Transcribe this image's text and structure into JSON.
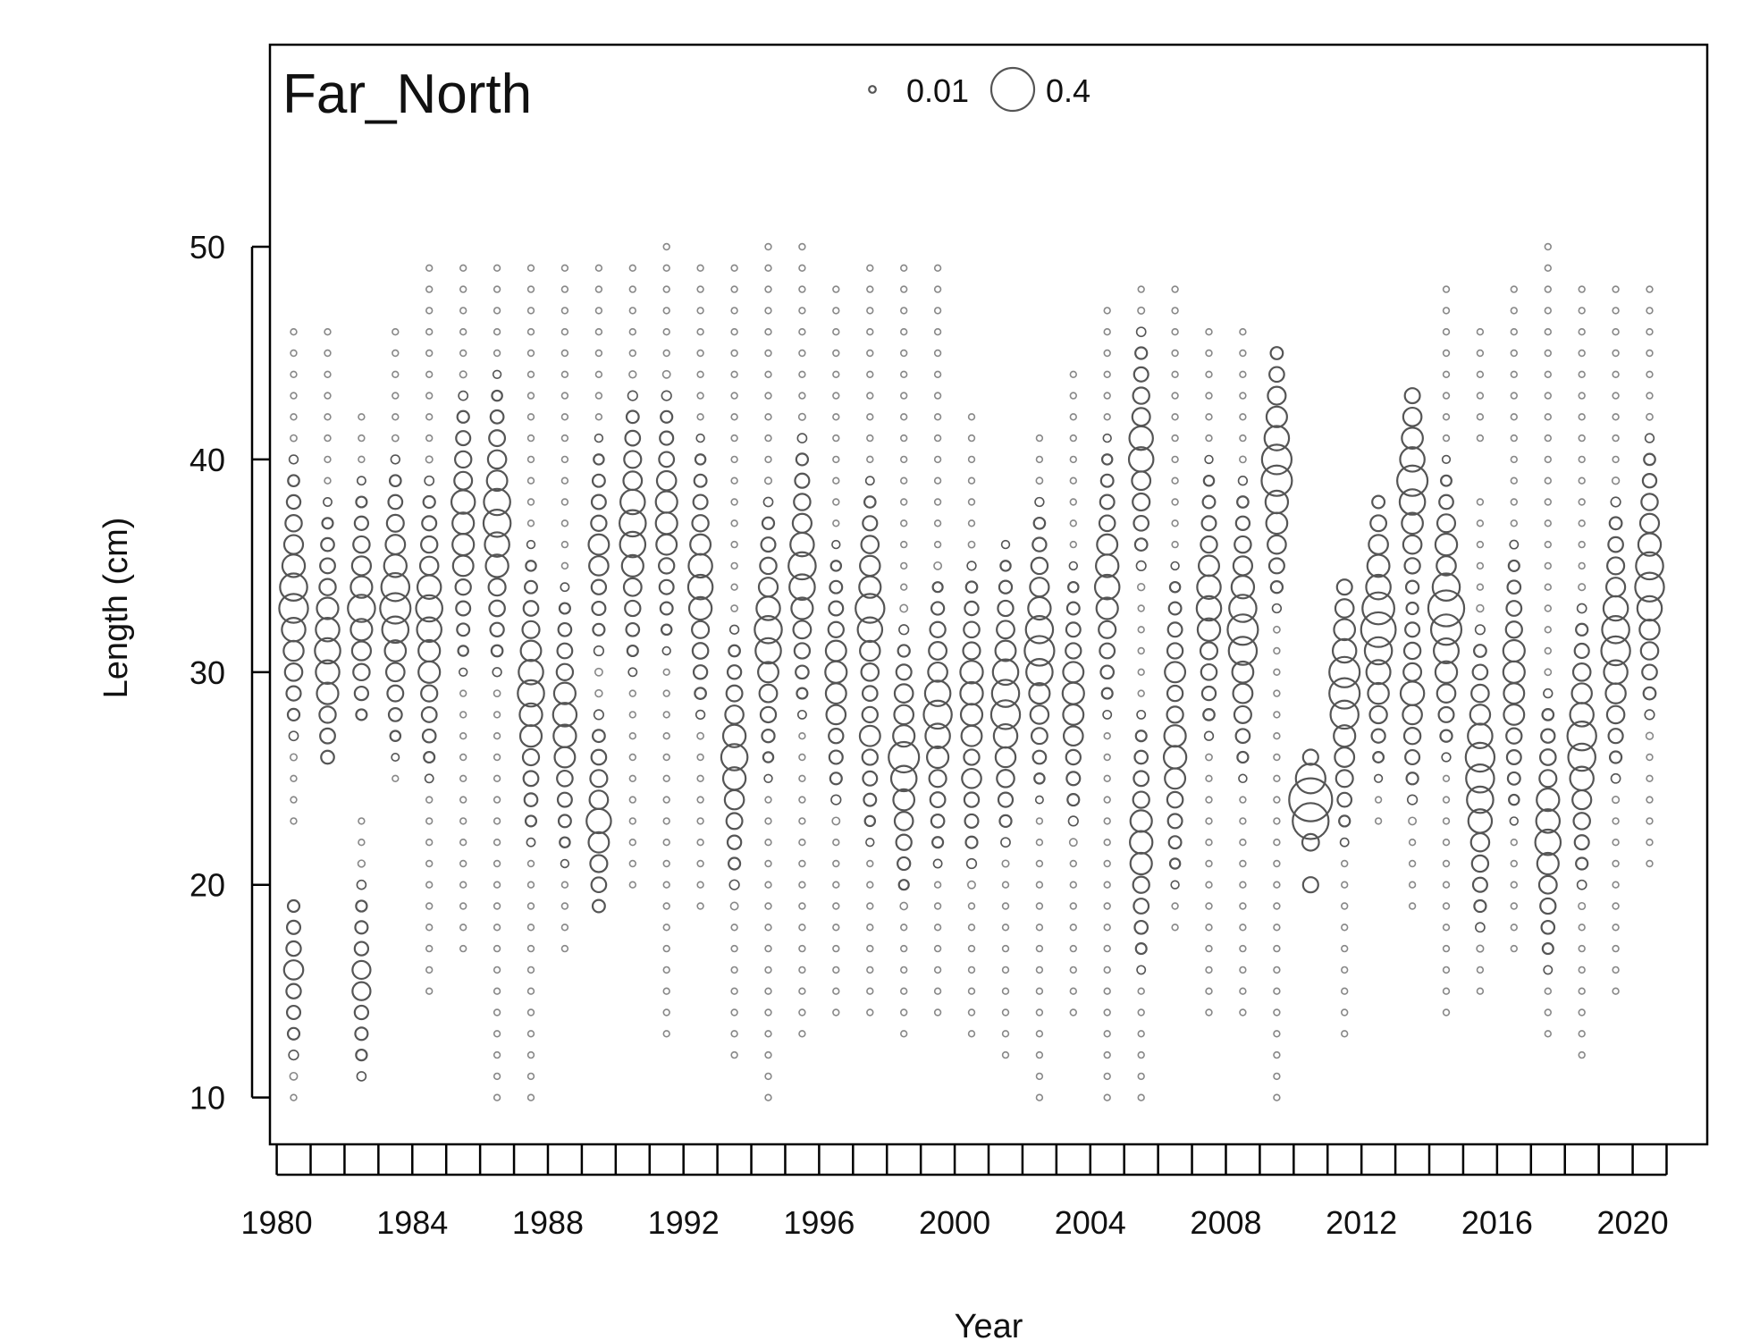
{
  "chart_data": {
    "type": "scatter",
    "subtype": "bubble",
    "title": "Far_North",
    "xlabel": "Year",
    "ylabel": "Length (cm)",
    "xlim": [
      1979.8,
      2022.2
    ],
    "ylim": [
      7.8,
      59.5
    ],
    "x_ticks": [
      1980,
      1981,
      1982,
      1983,
      1984,
      1985,
      1986,
      1987,
      1988,
      1989,
      1990,
      1991,
      1992,
      1993,
      1994,
      1995,
      1996,
      1997,
      1998,
      1999,
      2000,
      2001,
      2002,
      2003,
      2004,
      2005,
      2006,
      2007,
      2008,
      2009,
      2010,
      2011,
      2012,
      2013,
      2014,
      2015,
      2016,
      2017,
      2018,
      2019,
      2020,
      2021
    ],
    "x_tick_labels": [
      "1980",
      "1984",
      "1988",
      "1992",
      "1996",
      "2000",
      "2004",
      "2008",
      "2012",
      "2016",
      "2020"
    ],
    "x_tick_label_years": [
      1980,
      1984,
      1988,
      1992,
      1996,
      2000,
      2004,
      2008,
      2012,
      2016,
      2020
    ],
    "y_ticks": [
      10,
      20,
      30,
      40,
      50
    ],
    "y_tick_labels": [
      "10",
      "20",
      "30",
      "40",
      "50"
    ],
    "legend": {
      "position": "top-center",
      "entries": [
        {
          "label": "0.01",
          "value": 0.01
        },
        {
          "label": "0.4",
          "value": 0.4
        }
      ]
    },
    "grid": false,
    "point_color": "#555555",
    "series": [
      {
        "year": 1980.5,
        "min": 10,
        "max": 46,
        "gaps": [
          [
            20,
            22
          ]
        ],
        "peaks": [
          [
            33,
            0.18
          ],
          [
            34,
            0.16
          ],
          [
            32,
            0.12
          ],
          [
            35,
            0.11
          ],
          [
            16,
            0.08
          ]
        ]
      },
      {
        "year": 1981.5,
        "min": 26,
        "max": 46,
        "peaks": [
          [
            31,
            0.14
          ],
          [
            30,
            0.12
          ],
          [
            32,
            0.12
          ],
          [
            29,
            0.1
          ],
          [
            33,
            0.1
          ]
        ]
      },
      {
        "year": 1982.5,
        "min": 11,
        "max": 42,
        "gaps": [
          [
            24,
            27
          ]
        ],
        "peaks": [
          [
            33,
            0.16
          ],
          [
            34,
            0.1
          ],
          [
            32,
            0.1
          ],
          [
            16,
            0.07
          ],
          [
            15,
            0.07
          ]
        ]
      },
      {
        "year": 1983.5,
        "min": 25,
        "max": 46,
        "peaks": [
          [
            33,
            0.2
          ],
          [
            34,
            0.17
          ],
          [
            32,
            0.15
          ],
          [
            35,
            0.11
          ]
        ]
      },
      {
        "year": 1984.5,
        "min": 15,
        "max": 49,
        "peaks": [
          [
            33,
            0.15
          ],
          [
            32,
            0.13
          ],
          [
            34,
            0.12
          ],
          [
            30,
            0.1
          ],
          [
            31,
            0.1
          ]
        ]
      },
      {
        "year": 1985.5,
        "min": 17,
        "max": 49,
        "peaks": [
          [
            38,
            0.12
          ],
          [
            36,
            0.1
          ],
          [
            37,
            0.1
          ],
          [
            35,
            0.09
          ]
        ]
      },
      {
        "year": 1986.5,
        "min": 10,
        "max": 49,
        "peaks": [
          [
            37,
            0.16
          ],
          [
            38,
            0.15
          ],
          [
            36,
            0.13
          ],
          [
            35,
            0.11
          ],
          [
            39,
            0.09
          ]
        ]
      },
      {
        "year": 1987.5,
        "min": 10,
        "max": 49,
        "peaks": [
          [
            29,
            0.15
          ],
          [
            30,
            0.13
          ],
          [
            28,
            0.11
          ],
          [
            27,
            0.1
          ],
          [
            31,
            0.09
          ]
        ]
      },
      {
        "year": 1988.5,
        "min": 17,
        "max": 49,
        "peaks": [
          [
            28,
            0.12
          ],
          [
            27,
            0.11
          ],
          [
            29,
            0.1
          ],
          [
            26,
            0.09
          ]
        ]
      },
      {
        "year": 1989.5,
        "min": 19,
        "max": 49,
        "peaks": [
          [
            23,
            0.13
          ],
          [
            22,
            0.09
          ],
          [
            36,
            0.09
          ],
          [
            35,
            0.08
          ]
        ]
      },
      {
        "year": 1990.5,
        "min": 20,
        "max": 49,
        "peaks": [
          [
            37,
            0.15
          ],
          [
            36,
            0.14
          ],
          [
            38,
            0.13
          ],
          [
            35,
            0.1
          ]
        ]
      },
      {
        "year": 1991.5,
        "min": 13,
        "max": 50,
        "peaks": [
          [
            37,
            0.1
          ],
          [
            38,
            0.1
          ],
          [
            36,
            0.09
          ],
          [
            39,
            0.08
          ]
        ]
      },
      {
        "year": 1992.5,
        "min": 19,
        "max": 49,
        "peaks": [
          [
            34,
            0.13
          ],
          [
            35,
            0.12
          ],
          [
            33,
            0.11
          ],
          [
            36,
            0.09
          ]
        ]
      },
      {
        "year": 1993.5,
        "min": 12,
        "max": 49,
        "peaks": [
          [
            26,
            0.15
          ],
          [
            25,
            0.11
          ],
          [
            27,
            0.11
          ],
          [
            24,
            0.08
          ]
        ]
      },
      {
        "year": 1994.5,
        "min": 10,
        "max": 50,
        "peaks": [
          [
            32,
            0.16
          ],
          [
            31,
            0.14
          ],
          [
            33,
            0.12
          ],
          [
            30,
            0.09
          ]
        ]
      },
      {
        "year": 1995.5,
        "min": 13,
        "max": 50,
        "peaks": [
          [
            35,
            0.16
          ],
          [
            34,
            0.14
          ],
          [
            36,
            0.12
          ],
          [
            33,
            0.1
          ]
        ]
      },
      {
        "year": 1996.5,
        "min": 14,
        "max": 48,
        "peaks": [
          [
            30,
            0.1
          ],
          [
            29,
            0.09
          ],
          [
            31,
            0.09
          ],
          [
            28,
            0.08
          ]
        ]
      },
      {
        "year": 1997.5,
        "min": 14,
        "max": 49,
        "peaks": [
          [
            33,
            0.18
          ],
          [
            32,
            0.13
          ],
          [
            34,
            0.1
          ],
          [
            27,
            0.09
          ]
        ]
      },
      {
        "year": 1998.5,
        "min": 13,
        "max": 49,
        "peaks": [
          [
            26,
            0.2
          ],
          [
            25,
            0.14
          ],
          [
            27,
            0.1
          ],
          [
            28,
            0.08
          ]
        ]
      },
      {
        "year": 1999.5,
        "min": 14,
        "max": 49,
        "peaks": [
          [
            28,
            0.17
          ],
          [
            29,
            0.14
          ],
          [
            27,
            0.13
          ],
          [
            26,
            0.1
          ],
          [
            30,
            0.08
          ]
        ]
      },
      {
        "year": 2000.5,
        "min": 13,
        "max": 42,
        "peaks": [
          [
            29,
            0.11
          ],
          [
            30,
            0.11
          ],
          [
            28,
            0.1
          ],
          [
            27,
            0.09
          ],
          [
            25,
            0.08
          ]
        ]
      },
      {
        "year": 2001.5,
        "min": 12,
        "max": 36,
        "peaks": [
          [
            28,
            0.18
          ],
          [
            29,
            0.16
          ],
          [
            30,
            0.14
          ],
          [
            27,
            0.12
          ],
          [
            31,
            0.09
          ]
        ]
      },
      {
        "year": 2002.5,
        "min": 10,
        "max": 41,
        "peaks": [
          [
            31,
            0.19
          ],
          [
            32,
            0.16
          ],
          [
            30,
            0.15
          ],
          [
            33,
            0.11
          ]
        ]
      },
      {
        "year": 2003.5,
        "min": 14,
        "max": 44,
        "peaks": [
          [
            29,
            0.1
          ],
          [
            28,
            0.09
          ],
          [
            30,
            0.09
          ],
          [
            27,
            0.08
          ]
        ]
      },
      {
        "year": 2004.5,
        "min": 10,
        "max": 47,
        "peaks": [
          [
            34,
            0.13
          ],
          [
            35,
            0.11
          ],
          [
            33,
            0.1
          ],
          [
            36,
            0.09
          ]
        ]
      },
      {
        "year": 2005.5,
        "min": 10,
        "max": 48,
        "peaks": [
          [
            40,
            0.13
          ],
          [
            41,
            0.12
          ],
          [
            22,
            0.11
          ],
          [
            21,
            0.1
          ],
          [
            23,
            0.1
          ]
        ]
      },
      {
        "year": 2006.5,
        "min": 18,
        "max": 48,
        "peaks": [
          [
            26,
            0.11
          ],
          [
            27,
            0.1
          ],
          [
            25,
            0.09
          ],
          [
            30,
            0.09
          ]
        ]
      },
      {
        "year": 2007.5,
        "min": 14,
        "max": 46,
        "peaks": [
          [
            33,
            0.13
          ],
          [
            34,
            0.12
          ],
          [
            32,
            0.11
          ],
          [
            35,
            0.09
          ]
        ]
      },
      {
        "year": 2008.5,
        "min": 14,
        "max": 46,
        "peaks": [
          [
            32,
            0.2
          ],
          [
            31,
            0.17
          ],
          [
            33,
            0.16
          ],
          [
            34,
            0.11
          ]
        ]
      },
      {
        "year": 2009.5,
        "min": 10,
        "max": 45,
        "peaks": [
          [
            39,
            0.2
          ],
          [
            40,
            0.19
          ],
          [
            41,
            0.13
          ],
          [
            38,
            0.11
          ]
        ]
      },
      {
        "year": 2010.5,
        "min": 20,
        "max": 26,
        "gaps": [
          [
            21,
            21
          ]
        ],
        "peaks": [
          [
            24,
            0.4
          ],
          [
            23,
            0.28
          ],
          [
            25,
            0.19
          ],
          [
            22,
            0.06
          ],
          [
            20,
            0.05
          ],
          [
            26,
            0.05
          ]
        ]
      },
      {
        "year": 2011.5,
        "min": 13,
        "max": 34,
        "peaks": [
          [
            29,
            0.2
          ],
          [
            30,
            0.2
          ],
          [
            28,
            0.17
          ],
          [
            31,
            0.12
          ],
          [
            27,
            0.1
          ]
        ]
      },
      {
        "year": 2012.5,
        "min": 23,
        "max": 38,
        "peaks": [
          [
            32,
            0.26
          ],
          [
            33,
            0.22
          ],
          [
            31,
            0.16
          ],
          [
            34,
            0.13
          ]
        ]
      },
      {
        "year": 2013.5,
        "min": 19,
        "max": 43,
        "peaks": [
          [
            39,
            0.2
          ],
          [
            38,
            0.14
          ],
          [
            40,
            0.13
          ],
          [
            29,
            0.12
          ],
          [
            28,
            0.08
          ]
        ]
      },
      {
        "year": 2014.5,
        "min": 14,
        "max": 48,
        "peaks": [
          [
            33,
            0.28
          ],
          [
            32,
            0.2
          ],
          [
            34,
            0.16
          ],
          [
            35,
            0.08
          ]
        ]
      },
      {
        "year": 2015.5,
        "min": 15,
        "max": 46,
        "gaps": [
          [
            39,
            40
          ]
        ],
        "peaks": [
          [
            26,
            0.18
          ],
          [
            25,
            0.17
          ],
          [
            24,
            0.15
          ],
          [
            27,
            0.13
          ],
          [
            23,
            0.12
          ]
        ]
      },
      {
        "year": 2016.5,
        "min": 17,
        "max": 48,
        "peaks": [
          [
            30,
            0.1
          ],
          [
            31,
            0.1
          ],
          [
            29,
            0.09
          ],
          [
            28,
            0.09
          ]
        ]
      },
      {
        "year": 2017.5,
        "min": 13,
        "max": 50,
        "peaks": [
          [
            22,
            0.14
          ],
          [
            23,
            0.12
          ],
          [
            24,
            0.11
          ],
          [
            21,
            0.1
          ]
        ]
      },
      {
        "year": 2018.5,
        "min": 12,
        "max": 48,
        "peaks": [
          [
            27,
            0.18
          ],
          [
            26,
            0.16
          ],
          [
            28,
            0.12
          ],
          [
            25,
            0.12
          ]
        ]
      },
      {
        "year": 2019.5,
        "min": 15,
        "max": 48,
        "peaks": [
          [
            31,
            0.18
          ],
          [
            32,
            0.16
          ],
          [
            33,
            0.13
          ],
          [
            30,
            0.12
          ]
        ]
      },
      {
        "year": 2020.5,
        "min": 21,
        "max": 48,
        "peaks": [
          [
            34,
            0.18
          ],
          [
            35,
            0.16
          ],
          [
            33,
            0.13
          ],
          [
            36,
            0.11
          ]
        ]
      }
    ],
    "base_proportion": 0.008
  }
}
